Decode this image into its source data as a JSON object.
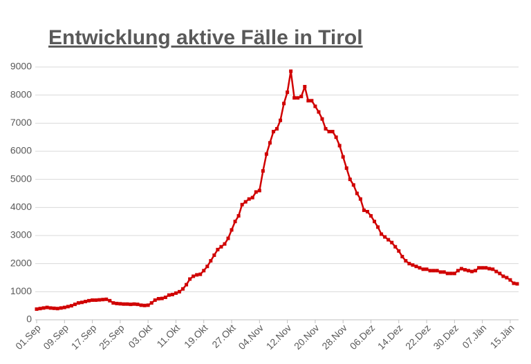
{
  "chart_data": {
    "type": "line",
    "title": "Entwicklung aktive Fälle in Tirol",
    "categories": [
      "01.Sep",
      null,
      null,
      null,
      null,
      null,
      null,
      null,
      "09.Sep",
      null,
      null,
      null,
      null,
      null,
      null,
      null,
      "17.Sep",
      null,
      null,
      null,
      null,
      null,
      null,
      null,
      "25.Sep",
      null,
      null,
      null,
      null,
      null,
      null,
      null,
      "03.Okt",
      null,
      null,
      null,
      null,
      null,
      null,
      null,
      "11.Okt",
      null,
      null,
      null,
      null,
      null,
      null,
      null,
      "19.Okt",
      null,
      null,
      null,
      null,
      null,
      null,
      null,
      "27.Okt",
      null,
      null,
      null,
      null,
      null,
      null,
      null,
      "04.Nov",
      null,
      null,
      null,
      null,
      null,
      null,
      null,
      "12.Nov",
      null,
      null,
      null,
      null,
      null,
      null,
      null,
      "20.Nov",
      null,
      null,
      null,
      null,
      null,
      null,
      null,
      "28.Nov",
      null,
      null,
      null,
      null,
      null,
      null,
      null,
      "06.Dez",
      null,
      null,
      null,
      null,
      null,
      null,
      null,
      "14.Dez",
      null,
      null,
      null,
      null,
      null,
      null,
      null,
      "22.Dez",
      null,
      null,
      null,
      null,
      null,
      null,
      null,
      "30.Dez",
      null,
      null,
      null,
      null,
      null,
      null,
      null,
      "07.Jän",
      null,
      null,
      null,
      null,
      null,
      null,
      null,
      "15.Jän",
      null,
      null
    ],
    "values": [
      380,
      400,
      420,
      440,
      420,
      410,
      400,
      420,
      440,
      470,
      500,
      550,
      600,
      620,
      650,
      680,
      700,
      700,
      710,
      720,
      730,
      680,
      600,
      580,
      570,
      560,
      560,
      550,
      560,
      550,
      520,
      510,
      520,
      600,
      700,
      750,
      760,
      800,
      880,
      900,
      950,
      1000,
      1100,
      1250,
      1450,
      1550,
      1600,
      1620,
      1750,
      1900,
      2100,
      2300,
      2500,
      2600,
      2700,
      2900,
      3200,
      3500,
      3700,
      4100,
      4200,
      4300,
      4350,
      4550,
      4600,
      5300,
      5900,
      6300,
      6700,
      6800,
      7100,
      7700,
      8100,
      8850,
      7900,
      7900,
      7950,
      8300,
      7800,
      7800,
      7600,
      7400,
      7150,
      6800,
      6700,
      6700,
      6500,
      6200,
      5800,
      5400,
      5000,
      4800,
      4500,
      4300,
      3900,
      3850,
      3700,
      3500,
      3300,
      3050,
      2950,
      2850,
      2750,
      2600,
      2450,
      2250,
      2100,
      2000,
      1950,
      1900,
      1850,
      1800,
      1800,
      1750,
      1750,
      1750,
      1700,
      1700,
      1650,
      1650,
      1650,
      1750,
      1820,
      1780,
      1750,
      1720,
      1750,
      1850,
      1850,
      1850,
      1820,
      1800,
      1720,
      1650,
      1550,
      1500,
      1420,
      1300,
      1280
    ],
    "color": "#d00000",
    "ylim": [
      0,
      9000
    ],
    "yticks": [
      0,
      1000,
      2000,
      3000,
      4000,
      5000,
      6000,
      7000,
      8000,
      9000
    ],
    "grid": true
  }
}
